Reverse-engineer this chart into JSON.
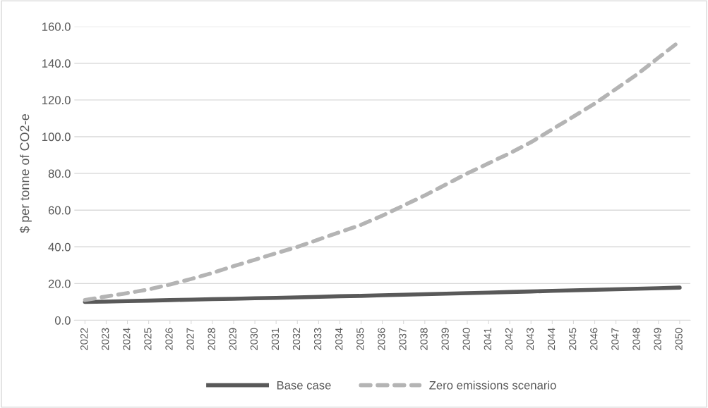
{
  "chart_data": {
    "type": "line",
    "ylabel": "$ per tonne of CO2-e",
    "categories": [
      "2022",
      "2023",
      "2024",
      "2025",
      "2026",
      "2027",
      "2028",
      "2029",
      "2030",
      "2031",
      "2032",
      "2033",
      "2034",
      "2035",
      "2036",
      "2037",
      "2038",
      "2039",
      "2040",
      "2041",
      "2042",
      "2043",
      "2044",
      "2045",
      "2046",
      "2047",
      "2048",
      "2049",
      "2050"
    ],
    "series": [
      {
        "name": "Base case",
        "color": "#595959",
        "line_style": "solid",
        "values": [
          10,
          10.2,
          10.5,
          10.7,
          11.0,
          11.2,
          11.5,
          11.7,
          12.0,
          12.2,
          12.5,
          12.8,
          13.1,
          13.3,
          13.6,
          13.9,
          14.2,
          14.5,
          14.8,
          15.1,
          15.4,
          15.7,
          16.0,
          16.3,
          16.6,
          16.9,
          17.2,
          17.5,
          17.8
        ]
      },
      {
        "name": "Zero emissions scenario",
        "color": "#b4b4b4",
        "line_style": "dashed",
        "values": [
          11,
          13,
          14.8,
          16.8,
          19.5,
          22.5,
          25.8,
          29.5,
          33,
          36.5,
          40,
          44,
          48,
          52,
          57,
          62.5,
          68,
          74,
          80,
          85.5,
          91,
          97,
          104,
          111,
          118,
          126,
          134,
          143,
          152
        ]
      }
    ],
    "ylim": [
      0,
      160
    ],
    "yticks": [
      {
        "value": 0,
        "label": "0.0"
      },
      {
        "value": 20,
        "label": "20.0"
      },
      {
        "value": 40,
        "label": "40.0"
      },
      {
        "value": 60,
        "label": "60.0"
      },
      {
        "value": 80,
        "label": "80.0"
      },
      {
        "value": 100,
        "label": "100.0"
      },
      {
        "value": 120,
        "label": "120.0"
      },
      {
        "value": 140,
        "label": "140.0"
      },
      {
        "value": 160,
        "label": "160.0"
      }
    ],
    "grid": "y",
    "legend": "bottom",
    "marker": "none"
  }
}
